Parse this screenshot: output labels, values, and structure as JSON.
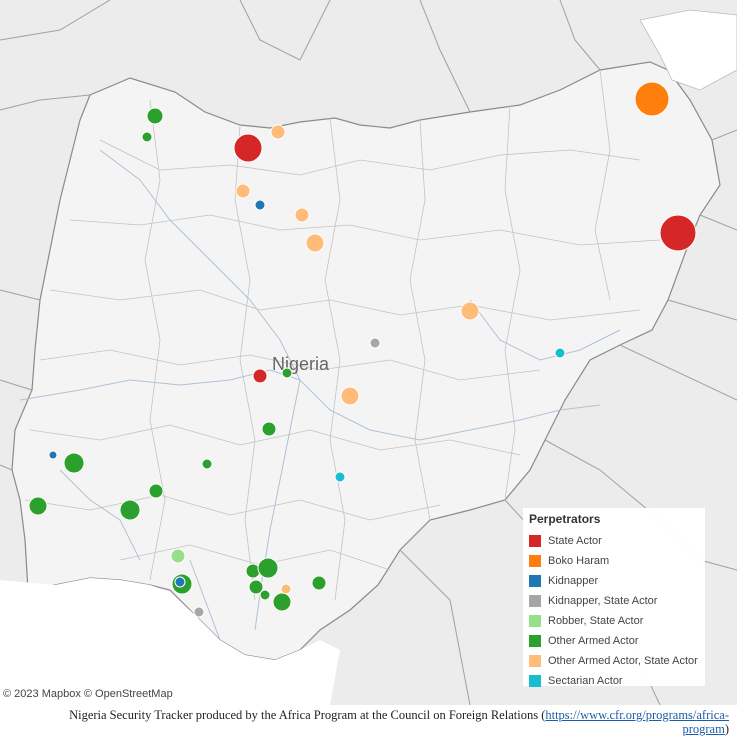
{
  "map": {
    "country_label": "Nigeria",
    "attribution": "© 2023 Mapbox  © OpenStreetMap"
  },
  "legend": {
    "title": "Perpetrators",
    "items": [
      {
        "label": "State Actor",
        "color": "#d62728"
      },
      {
        "label": "Boko Haram",
        "color": "#ff7f0e"
      },
      {
        "label": "Kidnapper",
        "color": "#1f77b4"
      },
      {
        "label": "Kidnapper, State Actor",
        "color": "#a6a6a6"
      },
      {
        "label": "Robber, State Actor",
        "color": "#98df8a"
      },
      {
        "label": "Other Armed Actor",
        "color": "#2ca02c"
      },
      {
        "label": "Other Armed Actor, State Actor",
        "color": "#ffbb78"
      },
      {
        "label": "Sectarian Actor",
        "color": "#17becf"
      }
    ]
  },
  "caption": {
    "text": "Nigeria Security Tracker produced by the Africa Program at the Council on Foreign Relations (",
    "link_line1": "https://www.cfr.org/programs/africa-",
    "link_line2": "program",
    "close": ")"
  }
}
